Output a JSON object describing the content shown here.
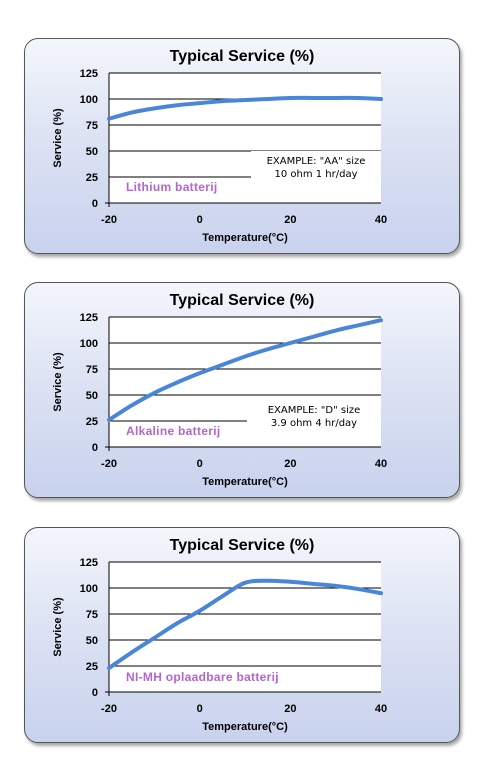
{
  "chart_data": [
    {
      "type": "line",
      "title": "Typical Service (%)",
      "xlabel": "Temperature(°C)",
      "ylabel": "Service (%)",
      "xlim": [
        -20,
        40
      ],
      "ylim": [
        0,
        125
      ],
      "xticks": [
        -20,
        0,
        20,
        40
      ],
      "yticks": [
        0,
        25,
        50,
        75,
        100,
        125
      ],
      "grid": true,
      "series_label": "Lithium batterij",
      "annotation": [
        "EXAMPLE: \"AA\" size",
        "10 ohm 1 hr/day"
      ],
      "line_color": "#4a86d8",
      "label_color": "#b366cc",
      "x": [
        -20,
        -15,
        -10,
        -5,
        0,
        5,
        10,
        15,
        20,
        25,
        30,
        35,
        40
      ],
      "y": [
        81,
        87,
        91,
        94,
        96,
        98,
        99,
        100,
        101,
        101,
        101,
        101,
        100
      ]
    },
    {
      "type": "line",
      "title": "Typical Service (%)",
      "xlabel": "Temperature(°C)",
      "ylabel": "Service (%)",
      "xlim": [
        -20,
        40
      ],
      "ylim": [
        0,
        125
      ],
      "xticks": [
        -20,
        0,
        20,
        40
      ],
      "yticks": [
        0,
        25,
        50,
        75,
        100,
        125
      ],
      "grid": true,
      "series_label": "Alkaline batterij",
      "annotation": [
        "EXAMPLE:  \"D\" size",
        "3.9 ohm 4 hr/day"
      ],
      "line_color": "#4a86d8",
      "label_color": "#b366cc",
      "x": [
        -20,
        -15,
        -10,
        -5,
        0,
        5,
        10,
        15,
        20,
        25,
        30,
        35,
        40
      ],
      "y": [
        26,
        40,
        52,
        62,
        71,
        79,
        87,
        94,
        100,
        106,
        112,
        117,
        122
      ]
    },
    {
      "type": "line",
      "title": "Typical Service (%)",
      "xlabel": "Temperature(°C)",
      "ylabel": "Service (%)",
      "xlim": [
        -20,
        40
      ],
      "ylim": [
        0,
        125
      ],
      "xticks": [
        -20,
        0,
        20,
        40
      ],
      "yticks": [
        0,
        25,
        50,
        75,
        100,
        125
      ],
      "grid": true,
      "series_label": "NI-MH oplaadbare batterij",
      "annotation": [],
      "line_color": "#4a86d8",
      "label_color": "#b366cc",
      "x": [
        -20,
        -15,
        -10,
        -5,
        0,
        5,
        10,
        15,
        20,
        25,
        30,
        35,
        40
      ],
      "y": [
        23,
        38,
        52,
        66,
        78,
        92,
        105,
        107,
        106,
        104,
        102,
        99,
        95
      ]
    }
  ]
}
